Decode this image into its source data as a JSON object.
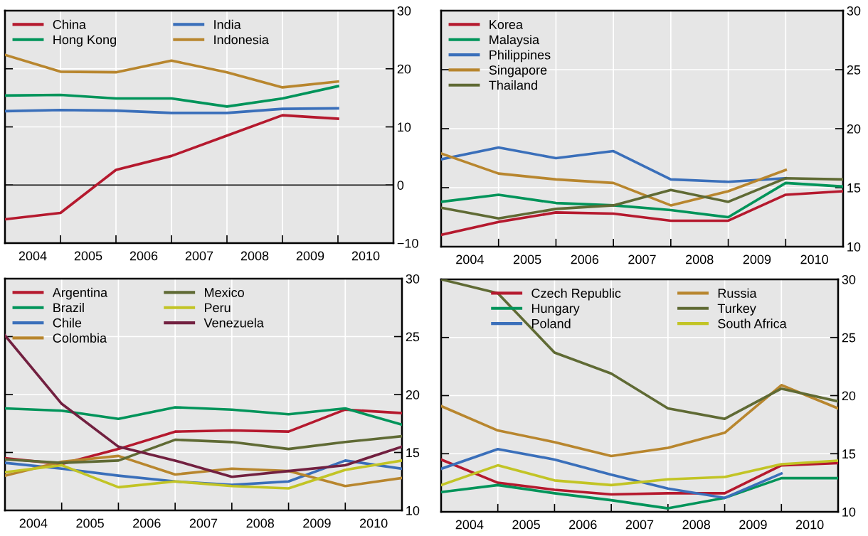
{
  "chart_data": [
    {
      "type": "line",
      "x": [
        2004,
        2005,
        2006,
        2007,
        2008,
        2009,
        2010
      ],
      "xlim": [
        2004,
        2011
      ],
      "ylim": [
        -10,
        30
      ],
      "xticks": [
        {
          "value": 2004.5,
          "label": "2004"
        },
        {
          "value": 2005,
          "label": null
        },
        {
          "value": 2005.5,
          "label": "2005"
        },
        {
          "value": 2006,
          "label": null
        },
        {
          "value": 2006.5,
          "label": "2006"
        },
        {
          "value": 2007,
          "label": null
        },
        {
          "value": 2007.5,
          "label": "2007"
        },
        {
          "value": 2008,
          "label": null
        },
        {
          "value": 2008.5,
          "label": "2008"
        },
        {
          "value": 2009,
          "label": null
        },
        {
          "value": 2009.5,
          "label": "2009"
        },
        {
          "value": 2010,
          "label": null
        },
        {
          "value": 2010.5,
          "label": "2010"
        }
      ],
      "yticks": [
        -10,
        0,
        10,
        20,
        30
      ],
      "grid": true,
      "legend": "top left",
      "ref_lines": [
        {
          "axis": "y",
          "value": 0,
          "color": "#000000"
        }
      ],
      "series": [
        {
          "name": "China",
          "color": "#b5192e",
          "values": [
            -5.9,
            -4.8,
            2.6,
            5.0,
            8.5,
            12.0,
            11.4
          ]
        },
        {
          "name": "Hong Kong",
          "color": "#00945a",
          "values": [
            15.4,
            15.5,
            14.9,
            14.9,
            13.5,
            14.9,
            17.0
          ]
        },
        {
          "name": "India",
          "color": "#3a6fba",
          "values": [
            12.7,
            12.9,
            12.8,
            12.4,
            12.4,
            13.1,
            13.2
          ]
        },
        {
          "name": "Indonesia",
          "color": "#b8862e",
          "values": [
            22.4,
            19.5,
            19.4,
            21.4,
            19.4,
            16.8,
            17.8
          ]
        }
      ]
    },
    {
      "type": "line",
      "x": [
        2004,
        2005,
        2006,
        2007,
        2008,
        2009,
        2010,
        2011
      ],
      "xlim": [
        2004,
        2011
      ],
      "ylim": [
        10,
        30
      ],
      "xticks": [
        {
          "value": 2004.5,
          "label": "2004"
        },
        {
          "value": 2005,
          "label": null
        },
        {
          "value": 2005.5,
          "label": "2005"
        },
        {
          "value": 2006,
          "label": null
        },
        {
          "value": 2006.5,
          "label": "2006"
        },
        {
          "value": 2007,
          "label": null
        },
        {
          "value": 2007.5,
          "label": "2007"
        },
        {
          "value": 2008,
          "label": null
        },
        {
          "value": 2008.5,
          "label": "2008"
        },
        {
          "value": 2009,
          "label": null
        },
        {
          "value": 2009.5,
          "label": "2009"
        },
        {
          "value": 2010,
          "label": null
        },
        {
          "value": 2010.5,
          "label": "2010"
        }
      ],
      "yticks": [
        10,
        15,
        20,
        25,
        30
      ],
      "grid": true,
      "legend": "top left",
      "series": [
        {
          "name": "Korea",
          "color": "#b5192e",
          "values": [
            11.0,
            12.1,
            12.9,
            12.8,
            12.2,
            12.2,
            14.4,
            14.7
          ]
        },
        {
          "name": "Malaysia",
          "color": "#00945a",
          "values": [
            13.8,
            14.4,
            13.7,
            13.5,
            13.1,
            12.5,
            15.4,
            15.1
          ]
        },
        {
          "name": "Philippines",
          "color": "#3a6fba",
          "values": [
            17.4,
            18.4,
            17.5,
            18.1,
            15.7,
            15.5,
            15.8,
            null
          ]
        },
        {
          "name": "Singapore",
          "color": "#b8862e",
          "values": [
            17.9,
            16.2,
            15.7,
            15.4,
            13.5,
            14.7,
            16.5,
            null
          ]
        },
        {
          "name": "Thailand",
          "color": "#5f6a34",
          "values": [
            13.3,
            12.4,
            13.2,
            13.5,
            14.8,
            13.8,
            15.8,
            15.7
          ]
        }
      ]
    },
    {
      "type": "line",
      "x": [
        2004,
        2005,
        2006,
        2007,
        2008,
        2009,
        2010,
        2011
      ],
      "xlim": [
        2004,
        2011
      ],
      "ylim": [
        10,
        30
      ],
      "xticks": [
        {
          "value": 2004.5,
          "label": "2004"
        },
        {
          "value": 2005,
          "label": null
        },
        {
          "value": 2005.5,
          "label": "2005"
        },
        {
          "value": 2006,
          "label": null
        },
        {
          "value": 2006.5,
          "label": "2006"
        },
        {
          "value": 2007,
          "label": null
        },
        {
          "value": 2007.5,
          "label": "2007"
        },
        {
          "value": 2008,
          "label": null
        },
        {
          "value": 2008.5,
          "label": "2008"
        },
        {
          "value": 2009,
          "label": null
        },
        {
          "value": 2009.5,
          "label": "2009"
        },
        {
          "value": 2010,
          "label": null
        },
        {
          "value": 2010.5,
          "label": "2010"
        }
      ],
      "yticks": [
        10,
        15,
        20,
        25,
        30
      ],
      "grid": true,
      "legend": "top left",
      "series": [
        {
          "name": "Argentina",
          "color": "#b5192e",
          "values": [
            14.5,
            14.0,
            15.3,
            16.8,
            16.9,
            16.8,
            18.7,
            18.4
          ]
        },
        {
          "name": "Brazil",
          "color": "#00945a",
          "values": [
            18.8,
            18.6,
            17.9,
            18.9,
            18.7,
            18.3,
            18.8,
            17.4
          ]
        },
        {
          "name": "Chile",
          "color": "#3a6fba",
          "values": [
            14.1,
            13.6,
            13.0,
            12.5,
            12.2,
            12.5,
            14.3,
            13.6
          ]
        },
        {
          "name": "Colombia",
          "color": "#b8862e",
          "values": [
            13.0,
            14.2,
            14.7,
            13.1,
            13.6,
            13.4,
            12.1,
            12.8
          ]
        },
        {
          "name": "Mexico",
          "color": "#5f6a34",
          "values": [
            14.4,
            14.1,
            14.3,
            16.1,
            15.9,
            15.3,
            15.9,
            16.4
          ]
        },
        {
          "name": "Peru",
          "color": "#c2c425",
          "values": [
            13.3,
            13.9,
            12.0,
            12.5,
            12.1,
            11.9,
            13.5,
            14.3
          ]
        },
        {
          "name": "Venezuela",
          "color": "#722040",
          "values": [
            25.1,
            19.2,
            15.5,
            14.3,
            12.9,
            13.4,
            13.9,
            15.5
          ]
        }
      ]
    },
    {
      "type": "line",
      "x": [
        2004,
        2005,
        2006,
        2007,
        2008,
        2009,
        2010,
        2011
      ],
      "xlim": [
        2004,
        2011
      ],
      "ylim": [
        10,
        30
      ],
      "xticks": [
        {
          "value": 2004.5,
          "label": "2004"
        },
        {
          "value": 2005,
          "label": null
        },
        {
          "value": 2005.5,
          "label": "2005"
        },
        {
          "value": 2006,
          "label": null
        },
        {
          "value": 2006.5,
          "label": "2006"
        },
        {
          "value": 2007,
          "label": null
        },
        {
          "value": 2007.5,
          "label": "2007"
        },
        {
          "value": 2008,
          "label": null
        },
        {
          "value": 2008.5,
          "label": "2008"
        },
        {
          "value": 2009,
          "label": null
        },
        {
          "value": 2009.5,
          "label": "2009"
        },
        {
          "value": 2010,
          "label": null
        },
        {
          "value": 2010.5,
          "label": "2010"
        }
      ],
      "yticks": [
        10,
        15,
        20,
        25,
        30
      ],
      "grid": true,
      "legend": "top",
      "series": [
        {
          "name": "Czech Republic",
          "color": "#b5192e",
          "values": [
            14.5,
            12.5,
            11.9,
            11.5,
            11.6,
            11.6,
            14.0,
            14.2
          ]
        },
        {
          "name": "Hungary",
          "color": "#00945a",
          "values": [
            11.7,
            12.3,
            11.6,
            11.0,
            10.3,
            11.2,
            12.9,
            12.9
          ]
        },
        {
          "name": "Poland",
          "color": "#3a6fba",
          "values": [
            13.7,
            15.4,
            14.5,
            13.2,
            12.0,
            11.2,
            13.3,
            null
          ]
        },
        {
          "name": "Russia",
          "color": "#b8862e",
          "values": [
            19.1,
            17.0,
            16.0,
            14.8,
            15.5,
            16.8,
            20.9,
            18.9
          ]
        },
        {
          "name": "Turkey",
          "color": "#5f6a34",
          "values": [
            30.0,
            28.8,
            23.7,
            21.9,
            18.9,
            18.0,
            20.6,
            19.5
          ]
        },
        {
          "name": "South Africa",
          "color": "#c2c425",
          "values": [
            12.3,
            14.0,
            12.7,
            12.3,
            12.8,
            13.0,
            14.1,
            14.4
          ]
        }
      ]
    }
  ]
}
